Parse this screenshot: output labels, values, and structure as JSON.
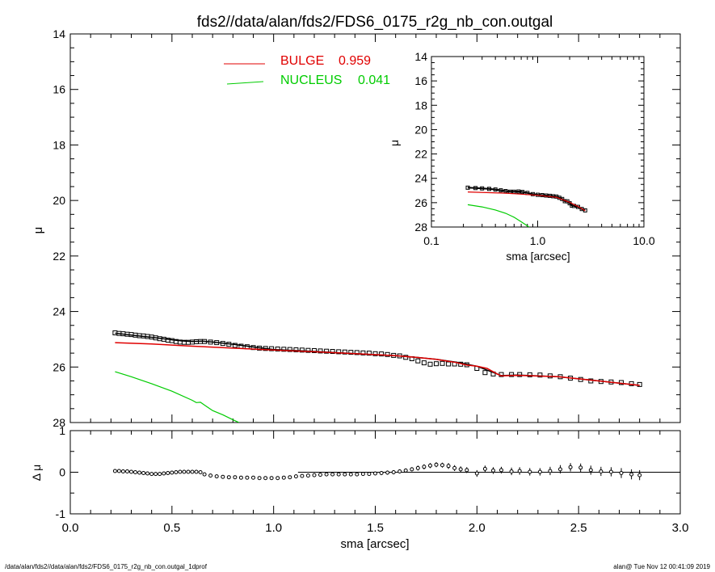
{
  "footer": {
    "left": "/data/alan/fds2//data/alan/fds2/FDS6_0175_r2g_nb_con.outgal_1dprof",
    "right": "alan@  Tue Nov 12 00:41:09 2019"
  },
  "chart_data": [
    {
      "type": "scatter",
      "panel": "main",
      "title": "fds2//data/alan/fds2/FDS6_0175_r2g_nb_con.outgal",
      "ylabel": "μ",
      "xlabel": "",
      "xlim": [
        0.0,
        3.0
      ],
      "ylim": [
        28,
        14
      ],
      "yticks": [
        "14",
        "16",
        "18",
        "20",
        "22",
        "24",
        "26",
        "28"
      ],
      "legend_placement": "top-center",
      "colors": {
        "data": "#000000",
        "bulge": "#e00000",
        "nucleus": "#00cc00",
        "model": "#000000"
      },
      "series": [
        {
          "name": "BULGE",
          "fraction": "0.959",
          "x": [
            0.22,
            0.4,
            0.6,
            0.8,
            1.0,
            1.2,
            1.4,
            1.6,
            1.7,
            1.8,
            1.9,
            1.95,
            2.0,
            2.05,
            2.1,
            2.12,
            2.2,
            2.4,
            2.6,
            2.8
          ],
          "y": [
            25.12,
            25.17,
            25.25,
            25.32,
            25.39,
            25.45,
            25.52,
            25.59,
            25.65,
            25.72,
            25.84,
            25.93,
            25.97,
            26.05,
            26.25,
            26.32,
            26.3,
            26.35,
            26.5,
            26.66
          ]
        },
        {
          "name": "NUCLEUS",
          "fraction": "0.041",
          "x": [
            0.22,
            0.3,
            0.4,
            0.5,
            0.6,
            0.62,
            0.64,
            0.66,
            0.7,
            0.75,
            0.8,
            0.83
          ],
          "y": [
            26.17,
            26.35,
            26.6,
            26.87,
            27.2,
            27.28,
            27.27,
            27.37,
            27.57,
            27.72,
            27.9,
            28.0
          ]
        },
        {
          "name": "model",
          "x": [
            0.22,
            0.3,
            0.4,
            0.5,
            0.55,
            0.6,
            0.65,
            0.7,
            0.8,
            0.9,
            1.0,
            1.2,
            1.4,
            1.6,
            1.7,
            1.8,
            1.9,
            2.0,
            2.1,
            2.12,
            2.2,
            2.4,
            2.6,
            2.8
          ],
          "y": [
            24.78,
            24.85,
            24.93,
            25.02,
            25.06,
            25.08,
            25.07,
            25.1,
            25.18,
            25.28,
            25.37,
            25.44,
            25.52,
            25.59,
            25.65,
            25.72,
            25.83,
            25.97,
            26.25,
            26.31,
            26.29,
            26.35,
            26.5,
            26.66
          ]
        },
        {
          "name": "data",
          "x": [
            0.22,
            0.24,
            0.26,
            0.28,
            0.3,
            0.32,
            0.34,
            0.36,
            0.38,
            0.4,
            0.42,
            0.44,
            0.46,
            0.48,
            0.5,
            0.52,
            0.54,
            0.56,
            0.58,
            0.6,
            0.62,
            0.64,
            0.66,
            0.69,
            0.72,
            0.75,
            0.78,
            0.81,
            0.84,
            0.87,
            0.9,
            0.93,
            0.96,
            0.99,
            1.02,
            1.05,
            1.08,
            1.11,
            1.14,
            1.17,
            1.2,
            1.23,
            1.26,
            1.29,
            1.32,
            1.35,
            1.38,
            1.41,
            1.44,
            1.47,
            1.5,
            1.53,
            1.56,
            1.59,
            1.62,
            1.65,
            1.68,
            1.71,
            1.74,
            1.77,
            1.8,
            1.83,
            1.86,
            1.89,
            1.92,
            1.95,
            2.0,
            2.04,
            2.08,
            2.12,
            2.17,
            2.21,
            2.26,
            2.31,
            2.36,
            2.41,
            2.46,
            2.51,
            2.56,
            2.61,
            2.66,
            2.71,
            2.76,
            2.8
          ],
          "y": [
            24.77,
            24.79,
            24.8,
            24.82,
            24.83,
            24.85,
            24.87,
            24.88,
            24.9,
            24.92,
            24.95,
            24.98,
            25.0,
            25.03,
            25.05,
            25.08,
            25.1,
            25.11,
            25.11,
            25.1,
            25.09,
            25.08,
            25.08,
            25.1,
            25.12,
            25.15,
            25.18,
            25.22,
            25.25,
            25.27,
            25.3,
            25.32,
            25.33,
            25.34,
            25.35,
            25.36,
            25.37,
            25.38,
            25.39,
            25.4,
            25.41,
            25.42,
            25.43,
            25.44,
            25.45,
            25.46,
            25.47,
            25.48,
            25.49,
            25.5,
            25.52,
            25.53,
            25.55,
            25.58,
            25.6,
            25.65,
            25.7,
            25.78,
            25.85,
            25.9,
            25.88,
            25.87,
            25.89,
            25.89,
            25.9,
            25.92,
            26.05,
            26.2,
            26.25,
            26.27,
            26.27,
            26.27,
            26.28,
            26.29,
            26.32,
            26.35,
            26.4,
            26.45,
            26.5,
            26.52,
            26.54,
            26.56,
            26.6,
            26.63
          ]
        }
      ]
    },
    {
      "type": "scatter",
      "panel": "residual",
      "ylabel": "Δ μ",
      "xlabel": "sma [arcsec]",
      "xlim": [
        0.0,
        3.0
      ],
      "ylim": [
        -1,
        1
      ],
      "yticks": [
        "-1",
        "0",
        "1"
      ],
      "xticks": [
        "0.0",
        "0.5",
        "1.0",
        "1.5",
        "2.0",
        "2.5",
        "3.0"
      ],
      "series": [
        {
          "name": "residual",
          "x": [
            0.22,
            0.24,
            0.26,
            0.28,
            0.3,
            0.32,
            0.34,
            0.36,
            0.38,
            0.4,
            0.42,
            0.44,
            0.46,
            0.48,
            0.5,
            0.52,
            0.54,
            0.56,
            0.58,
            0.6,
            0.62,
            0.64,
            0.66,
            0.69,
            0.72,
            0.75,
            0.78,
            0.81,
            0.84,
            0.87,
            0.9,
            0.93,
            0.96,
            0.99,
            1.02,
            1.05,
            1.08,
            1.11,
            1.14,
            1.17,
            1.2,
            1.23,
            1.26,
            1.29,
            1.32,
            1.35,
            1.38,
            1.41,
            1.44,
            1.47,
            1.5,
            1.53,
            1.56,
            1.59,
            1.62,
            1.65,
            1.68,
            1.71,
            1.74,
            1.77,
            1.8,
            1.83,
            1.86,
            1.89,
            1.92,
            1.95,
            2.0,
            2.04,
            2.08,
            2.12,
            2.17,
            2.21,
            2.26,
            2.31,
            2.36,
            2.41,
            2.46,
            2.51,
            2.56,
            2.61,
            2.66,
            2.71,
            2.76,
            2.8
          ],
          "y": [
            0.03,
            0.03,
            0.02,
            0.02,
            0.01,
            0.0,
            -0.01,
            -0.02,
            -0.03,
            -0.04,
            -0.04,
            -0.04,
            -0.03,
            -0.02,
            -0.01,
            0.0,
            0.01,
            0.01,
            0.01,
            0.01,
            0.01,
            0.0,
            -0.05,
            -0.08,
            -0.1,
            -0.11,
            -0.12,
            -0.12,
            -0.13,
            -0.13,
            -0.13,
            -0.14,
            -0.14,
            -0.14,
            -0.14,
            -0.13,
            -0.12,
            -0.1,
            -0.09,
            -0.08,
            -0.07,
            -0.06,
            -0.05,
            -0.05,
            -0.05,
            -0.05,
            -0.05,
            -0.05,
            -0.04,
            -0.04,
            -0.03,
            -0.02,
            -0.01,
            0.0,
            0.02,
            0.04,
            0.07,
            0.1,
            0.13,
            0.16,
            0.18,
            0.17,
            0.15,
            0.1,
            0.07,
            0.05,
            -0.03,
            0.08,
            0.04,
            0.05,
            0.02,
            0.03,
            0.01,
            0.01,
            0.03,
            0.07,
            0.12,
            0.11,
            0.05,
            0.02,
            0.01,
            -0.02,
            -0.05,
            -0.07
          ],
          "err": [
            0.03,
            0.03,
            0.03,
            0.03,
            0.03,
            0.03,
            0.03,
            0.03,
            0.03,
            0.03,
            0.03,
            0.03,
            0.03,
            0.03,
            0.03,
            0.03,
            0.03,
            0.03,
            0.03,
            0.03,
            0.03,
            0.03,
            0.03,
            0.03,
            0.03,
            0.03,
            0.03,
            0.03,
            0.03,
            0.03,
            0.03,
            0.03,
            0.03,
            0.03,
            0.03,
            0.03,
            0.03,
            0.03,
            0.03,
            0.03,
            0.03,
            0.03,
            0.03,
            0.04,
            0.04,
            0.04,
            0.04,
            0.04,
            0.04,
            0.04,
            0.04,
            0.05,
            0.05,
            0.05,
            0.05,
            0.05,
            0.05,
            0.06,
            0.06,
            0.06,
            0.06,
            0.06,
            0.07,
            0.07,
            0.07,
            0.07,
            0.08,
            0.08,
            0.08,
            0.08,
            0.09,
            0.09,
            0.09,
            0.09,
            0.1,
            0.1,
            0.1,
            0.1,
            0.11,
            0.11,
            0.11,
            0.12,
            0.12,
            0.12
          ]
        },
        {
          "name": "model-residual",
          "x": [
            1.12,
            3.0
          ],
          "y": [
            0,
            0
          ]
        }
      ]
    },
    {
      "type": "scatter",
      "panel": "inset",
      "xscale": "log",
      "ylabel": "μ",
      "xlabel": "sma [arcsec]",
      "xlim": [
        0.1,
        10.0
      ],
      "ylim": [
        28,
        14
      ],
      "xticks": [
        "0.1",
        "1.0",
        "10.0"
      ],
      "yticks": [
        "14",
        "16",
        "18",
        "20",
        "22",
        "24",
        "26",
        "28"
      ],
      "series": [
        {
          "name": "bulge-inset",
          "x": [
            0.22,
            0.5,
            1.0,
            1.5,
            2.0,
            2.5,
            2.8
          ],
          "y": [
            25.12,
            25.22,
            25.39,
            25.56,
            25.97,
            26.4,
            26.66
          ]
        },
        {
          "name": "nucleus-inset",
          "x": [
            0.22,
            0.3,
            0.4,
            0.5,
            0.6,
            0.7,
            0.83
          ],
          "y": [
            26.17,
            26.35,
            26.6,
            26.87,
            27.2,
            27.57,
            28.0
          ]
        },
        {
          "name": "data-inset",
          "x": [
            0.22,
            0.26,
            0.3,
            0.35,
            0.4,
            0.45,
            0.5,
            0.55,
            0.6,
            0.66,
            0.72,
            0.8,
            0.9,
            1.0,
            1.1,
            1.2,
            1.3,
            1.4,
            1.5,
            1.6,
            1.7,
            1.8,
            1.9,
            2.0,
            2.1,
            2.2,
            2.4,
            2.6,
            2.8
          ],
          "y": [
            24.77,
            24.8,
            24.83,
            24.87,
            24.92,
            24.99,
            25.05,
            25.1,
            25.1,
            25.08,
            25.12,
            25.2,
            25.3,
            25.35,
            25.38,
            25.41,
            25.44,
            25.47,
            25.5,
            25.6,
            25.7,
            25.88,
            25.89,
            26.05,
            26.25,
            26.27,
            26.35,
            26.52,
            26.63
          ]
        }
      ]
    }
  ]
}
